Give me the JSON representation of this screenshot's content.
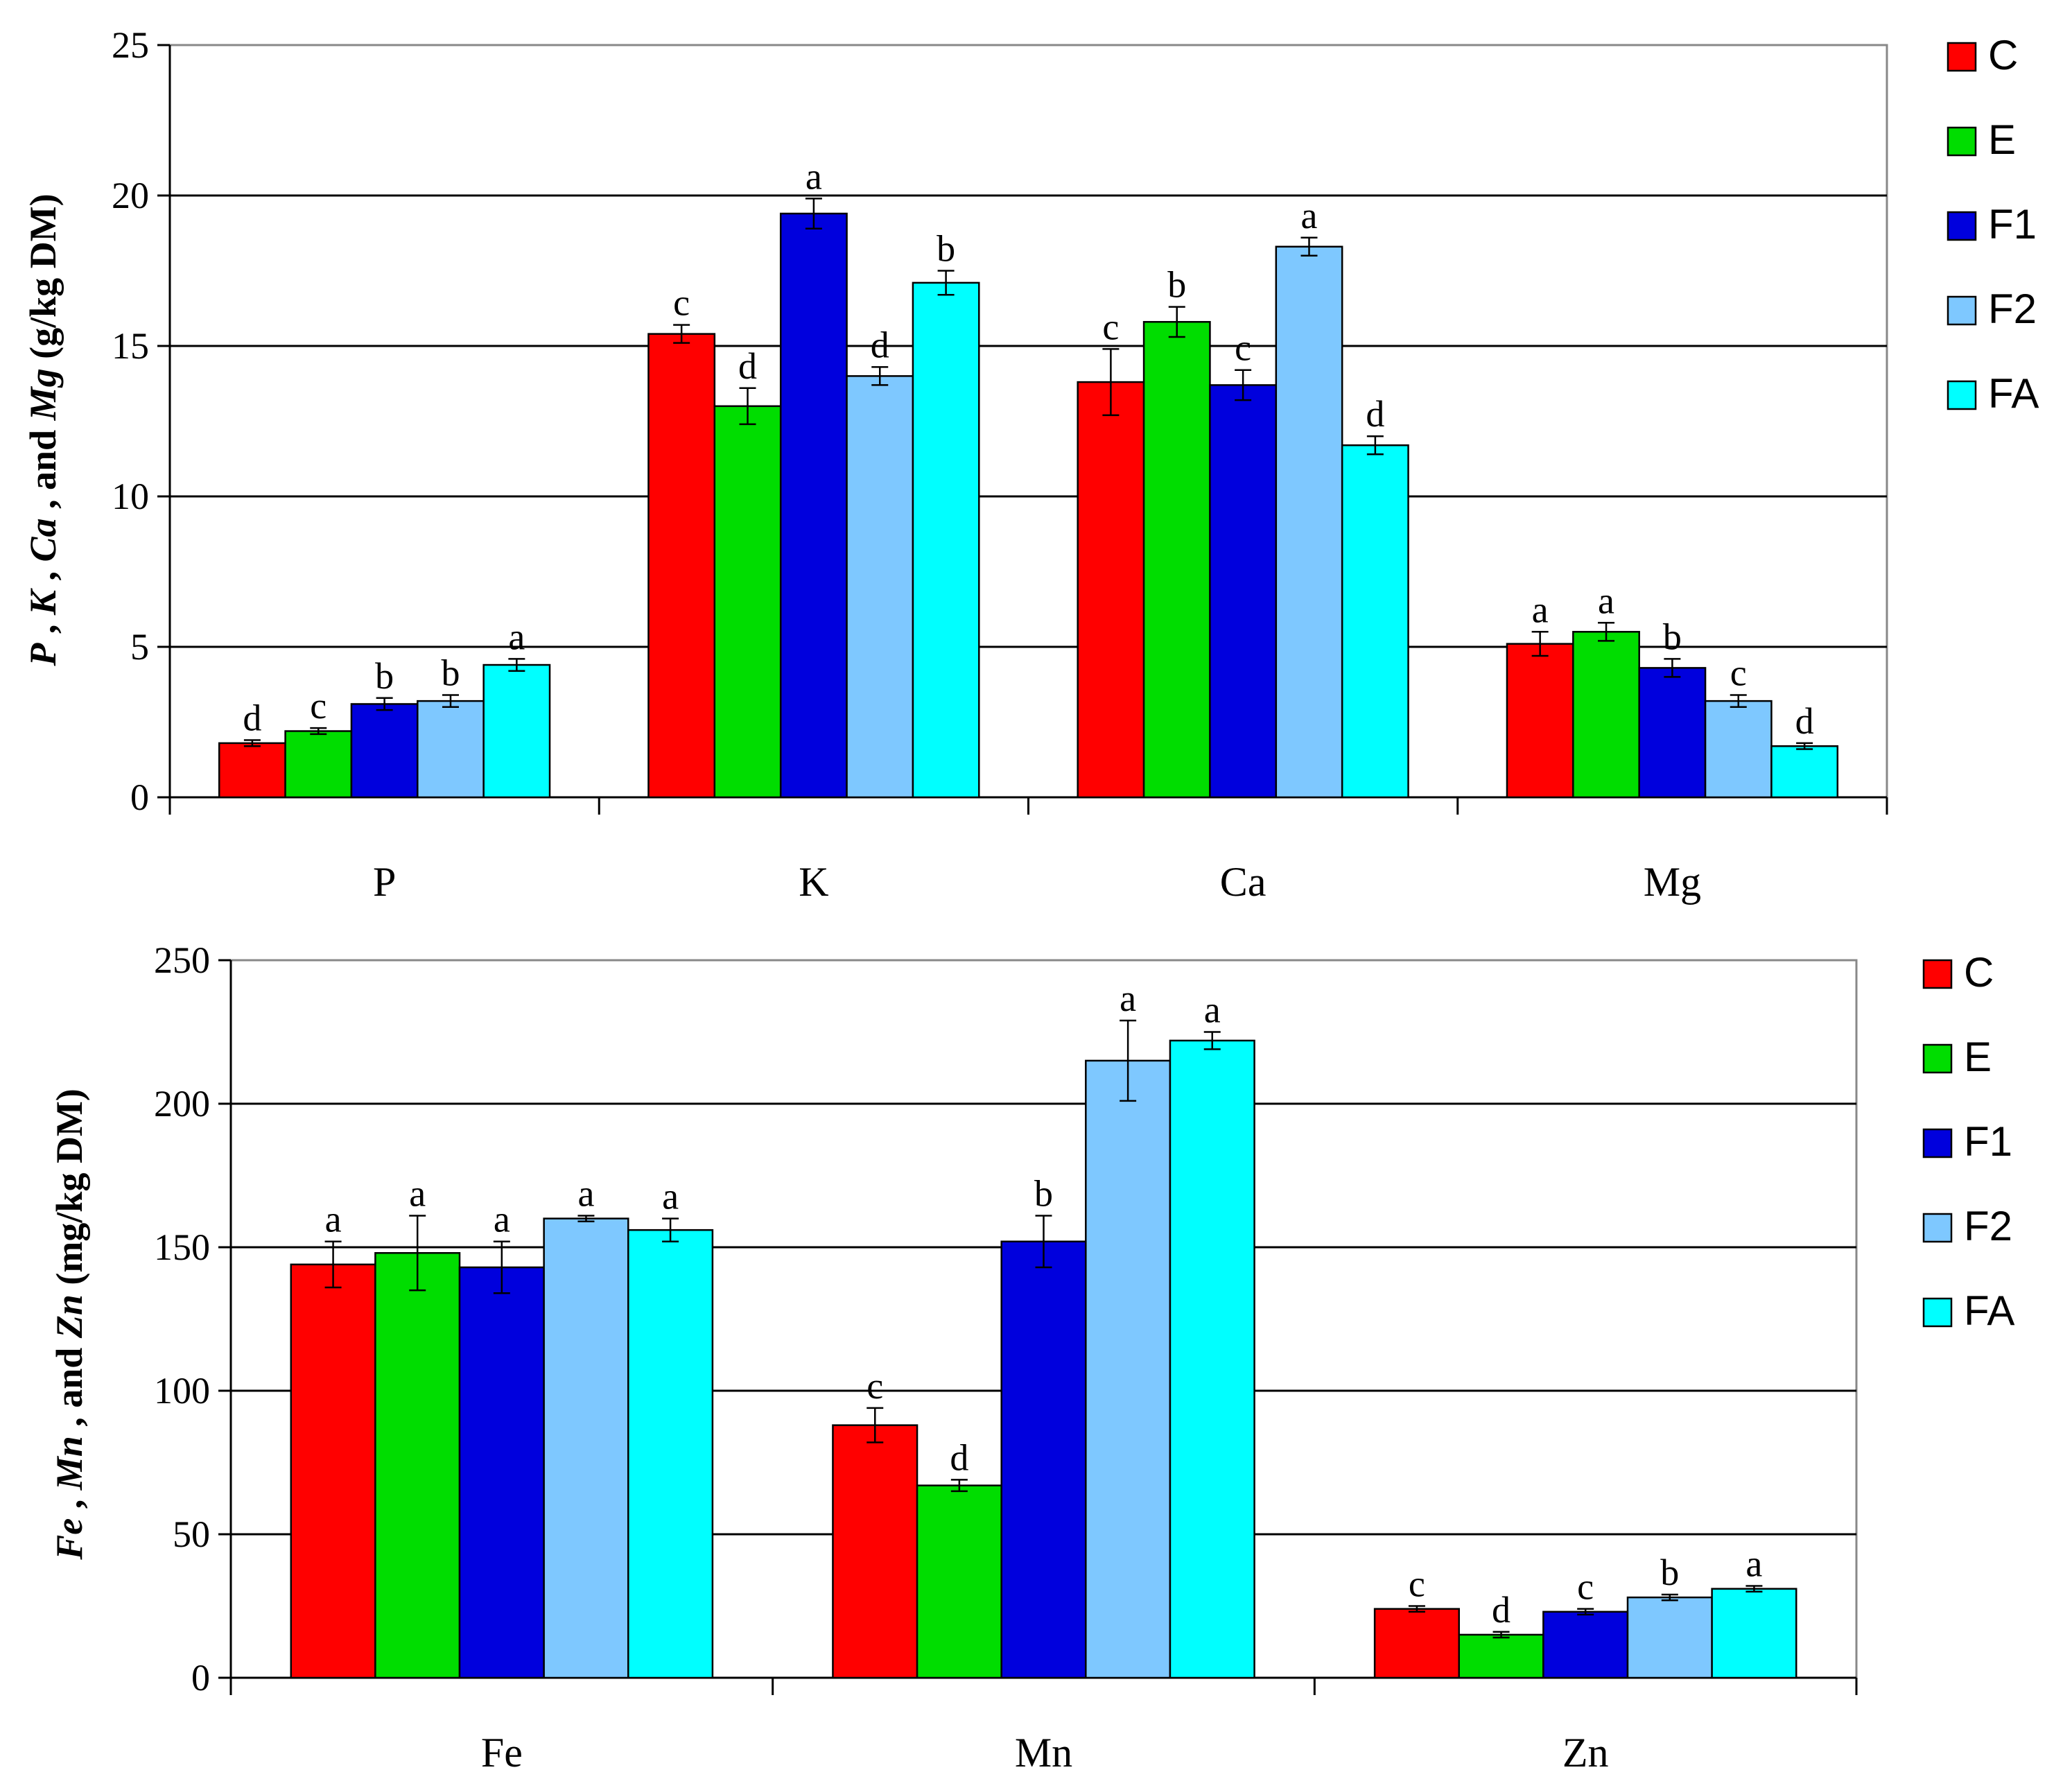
{
  "series_colors": {
    "C": "#ff0000",
    "E": "#00dd00",
    "F1": "#0000dd",
    "F2": "#7ec8ff",
    "FA": "#00ffff"
  },
  "chart_data": [
    {
      "type": "bar",
      "categories": [
        "P",
        "K",
        "Ca",
        "Mg"
      ],
      "ylim": [
        0,
        25
      ],
      "yticks": [
        "0",
        "5",
        "10",
        "15",
        "20",
        "25"
      ],
      "ylabel_parts": [
        {
          "text": "P",
          "italic": true
        },
        {
          "text": " , ",
          "italic": false
        },
        {
          "text": "K",
          "italic": true
        },
        {
          "text": " , ",
          "italic": false
        },
        {
          "text": "Ca",
          "italic": true
        },
        {
          "text": " , and ",
          "italic": false
        },
        {
          "text": "Mg",
          "italic": true
        },
        {
          "text": "  (g/kg DM)",
          "italic": false
        }
      ],
      "grid": true,
      "legend_position": "right",
      "series": [
        {
          "name": "C",
          "values": [
            1.8,
            15.4,
            13.8,
            5.1
          ],
          "errors": [
            0.1,
            0.3,
            1.1,
            0.4
          ],
          "letters": [
            "d",
            "c",
            "c",
            "a"
          ]
        },
        {
          "name": "E",
          "values": [
            2.2,
            13.0,
            15.8,
            5.5
          ],
          "errors": [
            0.1,
            0.6,
            0.5,
            0.3
          ],
          "letters": [
            "c",
            "d",
            "b",
            "a"
          ]
        },
        {
          "name": "F1",
          "values": [
            3.1,
            19.4,
            13.7,
            4.3
          ],
          "errors": [
            0.2,
            0.5,
            0.5,
            0.3
          ],
          "letters": [
            "b",
            "a",
            "c",
            "b"
          ]
        },
        {
          "name": "F2",
          "values": [
            3.2,
            14.0,
            18.3,
            3.2
          ],
          "errors": [
            0.2,
            0.3,
            0.3,
            0.2
          ],
          "letters": [
            "b",
            "d",
            "a",
            "c"
          ]
        },
        {
          "name": "FA",
          "values": [
            4.4,
            17.1,
            11.7,
            1.7
          ],
          "errors": [
            0.2,
            0.4,
            0.3,
            0.1
          ],
          "letters": [
            "a",
            "b",
            "d",
            "d"
          ]
        }
      ]
    },
    {
      "type": "bar",
      "categories": [
        "Fe",
        "Mn",
        "Zn"
      ],
      "ylim": [
        0,
        250
      ],
      "yticks": [
        "0",
        "50",
        "100",
        "150",
        "200",
        "250"
      ],
      "ylabel_parts": [
        {
          "text": "Fe",
          "italic": true
        },
        {
          "text": " , ",
          "italic": false
        },
        {
          "text": "Mn",
          "italic": true
        },
        {
          "text": " , and ",
          "italic": false
        },
        {
          "text": "Zn",
          "italic": true
        },
        {
          "text": "  (mg/kg DM)",
          "italic": false
        }
      ],
      "grid": true,
      "legend_position": "right",
      "series": [
        {
          "name": "C",
          "values": [
            144,
            88,
            24
          ],
          "errors": [
            8,
            6,
            1
          ],
          "letters": [
            "a",
            "c",
            "c"
          ]
        },
        {
          "name": "E",
          "values": [
            148,
            67,
            15
          ],
          "errors": [
            13,
            2,
            1
          ],
          "letters": [
            "a",
            "d",
            "d"
          ]
        },
        {
          "name": "F1",
          "values": [
            143,
            152,
            23
          ],
          "errors": [
            9,
            9,
            1
          ],
          "letters": [
            "a",
            "b",
            "c"
          ]
        },
        {
          "name": "F2",
          "values": [
            160,
            215,
            28
          ],
          "errors": [
            1,
            14,
            1
          ],
          "letters": [
            "a",
            "a",
            "b"
          ]
        },
        {
          "name": "FA",
          "values": [
            156,
            222,
            31
          ],
          "errors": [
            4,
            3,
            1
          ],
          "letters": [
            "a",
            "a",
            "a"
          ]
        }
      ]
    }
  ]
}
